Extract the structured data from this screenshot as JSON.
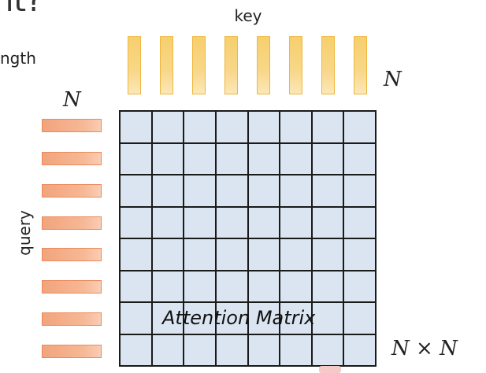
{
  "header": {
    "title_fragment": "nt?",
    "side_text_fragment": "ngth"
  },
  "labels": {
    "key": "key",
    "query": "query",
    "n_left": "N",
    "n_right": "N",
    "n_by_n": "N × N",
    "matrix": "Attention Matrix"
  },
  "diagram": {
    "key_vectors": 8,
    "query_vectors": 8,
    "grid_rows": 8,
    "grid_cols": 8
  },
  "colors": {
    "key_fill": "#f6cf6e",
    "query_fill": "#f2a47c",
    "matrix_fill": "#dbe5f1",
    "grid_line": "#1a1a1a"
  }
}
